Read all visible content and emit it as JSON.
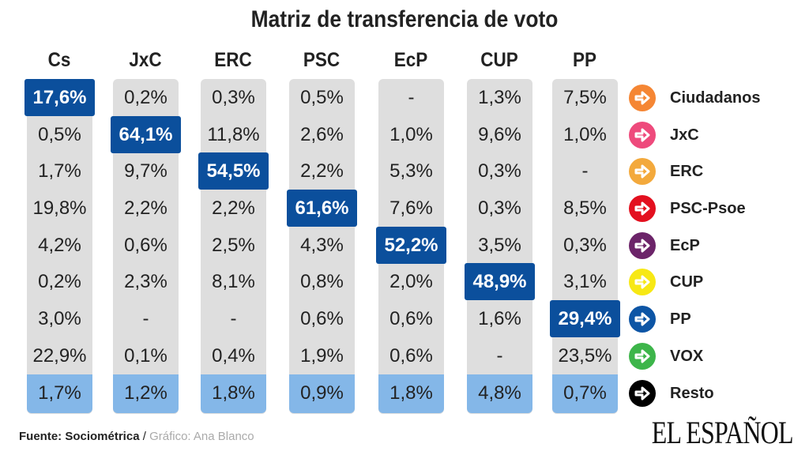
{
  "title": "Matriz de transferencia de voto",
  "chart_data": {
    "type": "table",
    "title": "Matriz de transferencia de voto",
    "columns": [
      "Cs",
      "JxC",
      "ERC",
      "PSC",
      "EcP",
      "CUP",
      "PP"
    ],
    "rows": [
      "Ciudadanos",
      "JxC",
      "ERC",
      "PSC-Psoe",
      "EcP",
      "CUP",
      "PP",
      "VOX",
      "Resto"
    ],
    "cells": [
      [
        "17,6%",
        "0,2%",
        "0,3%",
        "0,5%",
        "-",
        "1,3%",
        "7,5%"
      ],
      [
        "0,5%",
        "64,1%",
        "11,8%",
        "2,6%",
        "1,0%",
        "9,6%",
        "1,0%"
      ],
      [
        "1,7%",
        "9,7%",
        "54,5%",
        "2,2%",
        "5,3%",
        "0,3%",
        "-"
      ],
      [
        "19,8%",
        "2,2%",
        "2,2%",
        "61,6%",
        "7,6%",
        "0,3%",
        "8,5%"
      ],
      [
        "4,2%",
        "0,6%",
        "2,5%",
        "4,3%",
        "52,2%",
        "3,5%",
        "0,3%"
      ],
      [
        "0,2%",
        "2,3%",
        "8,1%",
        "0,8%",
        "2,0%",
        "48,9%",
        "3,1%"
      ],
      [
        "3,0%",
        "-",
        "-",
        "0,6%",
        "0,6%",
        "1,6%",
        "29,4%"
      ],
      [
        "22,9%",
        "0,1%",
        "0,4%",
        "1,9%",
        "0,6%",
        "-",
        "23,5%"
      ],
      [
        "1,7%",
        "1,2%",
        "1,8%",
        "0,9%",
        "1,8%",
        "4,8%",
        "0,7%"
      ]
    ],
    "highlight": "diagonal",
    "highlight_color": "#0b4f9c",
    "last_row_color": "#84b7e8"
  },
  "legend": [
    {
      "label": "Ciudadanos",
      "color": "#f58634",
      "icon": "arrow-right-icon"
    },
    {
      "label": "JxC",
      "color": "#ee4a7c",
      "icon": "arrow-right-icon"
    },
    {
      "label": "ERC",
      "color": "#f3a93c",
      "icon": "arrow-right-icon"
    },
    {
      "label": "PSC-Psoe",
      "color": "#e3101f",
      "icon": "arrow-right-icon"
    },
    {
      "label": "EcP",
      "color": "#6c2469",
      "icon": "arrow-right-icon"
    },
    {
      "label": "CUP",
      "color": "#f7e814",
      "icon": "arrow-right-icon"
    },
    {
      "label": "PP",
      "color": "#0d55a5",
      "icon": "arrow-right-icon"
    },
    {
      "label": "VOX",
      "color": "#3db54a",
      "icon": "arrow-right-icon"
    },
    {
      "label": "Resto",
      "color": "#000000",
      "icon": "arrow-right-icon"
    }
  ],
  "footer": {
    "source": "Fuente: Sociométrica",
    "sep": " / ",
    "credit": "Gráfico: Ana Blanco"
  },
  "logo": "EL ESPAÑOL"
}
